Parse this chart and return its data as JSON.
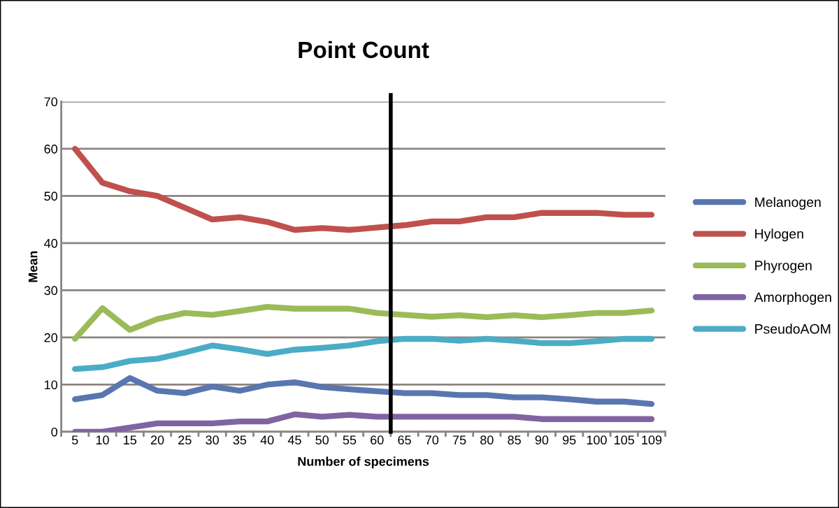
{
  "chart_data": {
    "type": "line",
    "title": "Point Count",
    "xlabel": "Number of specimens",
    "ylabel": "Mean",
    "categories": [
      "5",
      "10",
      "15",
      "20",
      "25",
      "30",
      "35",
      "40",
      "45",
      "50",
      "55",
      "60",
      "65",
      "70",
      "75",
      "80",
      "85",
      "90",
      "95",
      "100",
      "105",
      "109"
    ],
    "series": [
      {
        "name": "Melanogen",
        "color": "#5a76b0",
        "values": [
          6.9,
          7.8,
          11.4,
          8.7,
          8.2,
          9.6,
          8.7,
          10,
          10.5,
          9.5,
          9,
          8.6,
          8.2,
          8.2,
          7.8,
          7.8,
          7.3,
          7.3,
          6.9,
          6.4,
          6.4,
          5.9
        ]
      },
      {
        "name": "Hylogen",
        "color": "#c0504d",
        "values": [
          60,
          52.8,
          51,
          50,
          47.5,
          45,
          45.5,
          44.5,
          42.8,
          43.2,
          42.8,
          43.3,
          43.8,
          44.6,
          44.6,
          45.5,
          45.5,
          46.4,
          46.4,
          46.4,
          46,
          46
        ]
      },
      {
        "name": "Phyrogen",
        "color": "#9bbb59",
        "values": [
          19.7,
          26.2,
          21.6,
          23.9,
          25.2,
          24.8,
          25.6,
          26.5,
          26.1,
          26.1,
          26.1,
          25.2,
          24.8,
          24.4,
          24.7,
          24.3,
          24.7,
          24.3,
          24.7,
          25.2,
          25.2,
          25.7
        ]
      },
      {
        "name": "Amorphogen",
        "color": "#8064a2",
        "values": [
          0,
          0,
          0.9,
          1.8,
          1.8,
          1.8,
          2.2,
          2.2,
          3.7,
          3.2,
          3.6,
          3.2,
          3.2,
          3.2,
          3.2,
          3.2,
          3.2,
          2.7,
          2.7,
          2.7,
          2.7,
          2.7
        ]
      },
      {
        "name": "PseudoAOM",
        "color": "#4bacc6",
        "values": [
          13.3,
          13.7,
          15,
          15.5,
          16.8,
          18.3,
          17.5,
          16.5,
          17.4,
          17.8,
          18.3,
          19.2,
          19.7,
          19.7,
          19.3,
          19.7,
          19.3,
          18.8,
          18.8,
          19.2,
          19.7,
          19.7
        ]
      }
    ],
    "ylim": [
      0,
      70
    ],
    "yticks": [
      0,
      10,
      20,
      30,
      40,
      50,
      60,
      70
    ],
    "grid": "y",
    "legend": "right",
    "marker": "none",
    "line_style": "solid",
    "ref_lines": [
      {
        "axis": "x",
        "value": "65",
        "color": "#000000",
        "line_style": "solid"
      }
    ]
  }
}
